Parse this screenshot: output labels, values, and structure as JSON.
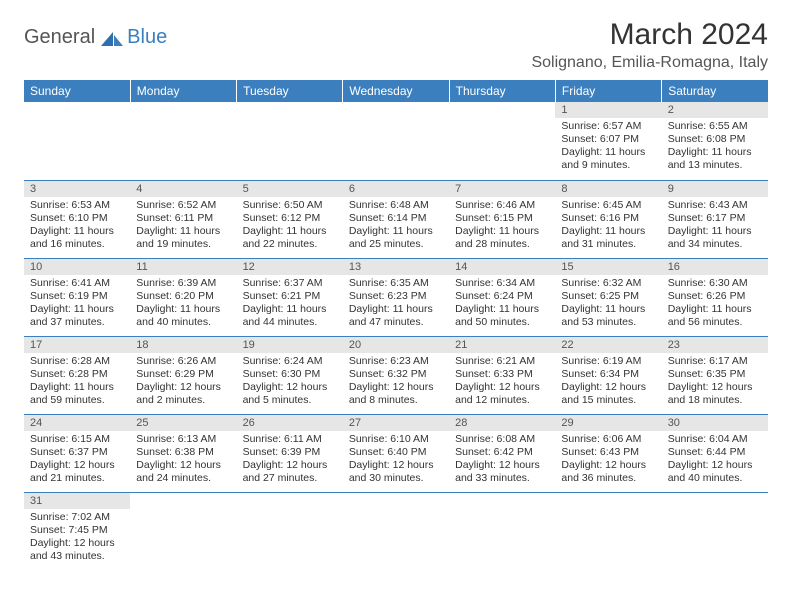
{
  "logo": {
    "general": "General",
    "blue": "Blue"
  },
  "title": "March 2024",
  "location": "Solignano, Emilia-Romagna, Italy",
  "colors": {
    "header_bg": "#3b7fbf",
    "header_text": "#ffffff",
    "daynum_bg": "#e6e6e6",
    "row_border": "#3b7fbf",
    "body_bg": "#ffffff",
    "text": "#333333"
  },
  "weekdays": [
    "Sunday",
    "Monday",
    "Tuesday",
    "Wednesday",
    "Thursday",
    "Friday",
    "Saturday"
  ],
  "weeks": [
    [
      null,
      null,
      null,
      null,
      null,
      {
        "n": "1",
        "sunrise": "Sunrise: 6:57 AM",
        "sunset": "Sunset: 6:07 PM",
        "daylight": "Daylight: 11 hours and 9 minutes."
      },
      {
        "n": "2",
        "sunrise": "Sunrise: 6:55 AM",
        "sunset": "Sunset: 6:08 PM",
        "daylight": "Daylight: 11 hours and 13 minutes."
      }
    ],
    [
      {
        "n": "3",
        "sunrise": "Sunrise: 6:53 AM",
        "sunset": "Sunset: 6:10 PM",
        "daylight": "Daylight: 11 hours and 16 minutes."
      },
      {
        "n": "4",
        "sunrise": "Sunrise: 6:52 AM",
        "sunset": "Sunset: 6:11 PM",
        "daylight": "Daylight: 11 hours and 19 minutes."
      },
      {
        "n": "5",
        "sunrise": "Sunrise: 6:50 AM",
        "sunset": "Sunset: 6:12 PM",
        "daylight": "Daylight: 11 hours and 22 minutes."
      },
      {
        "n": "6",
        "sunrise": "Sunrise: 6:48 AM",
        "sunset": "Sunset: 6:14 PM",
        "daylight": "Daylight: 11 hours and 25 minutes."
      },
      {
        "n": "7",
        "sunrise": "Sunrise: 6:46 AM",
        "sunset": "Sunset: 6:15 PM",
        "daylight": "Daylight: 11 hours and 28 minutes."
      },
      {
        "n": "8",
        "sunrise": "Sunrise: 6:45 AM",
        "sunset": "Sunset: 6:16 PM",
        "daylight": "Daylight: 11 hours and 31 minutes."
      },
      {
        "n": "9",
        "sunrise": "Sunrise: 6:43 AM",
        "sunset": "Sunset: 6:17 PM",
        "daylight": "Daylight: 11 hours and 34 minutes."
      }
    ],
    [
      {
        "n": "10",
        "sunrise": "Sunrise: 6:41 AM",
        "sunset": "Sunset: 6:19 PM",
        "daylight": "Daylight: 11 hours and 37 minutes."
      },
      {
        "n": "11",
        "sunrise": "Sunrise: 6:39 AM",
        "sunset": "Sunset: 6:20 PM",
        "daylight": "Daylight: 11 hours and 40 minutes."
      },
      {
        "n": "12",
        "sunrise": "Sunrise: 6:37 AM",
        "sunset": "Sunset: 6:21 PM",
        "daylight": "Daylight: 11 hours and 44 minutes."
      },
      {
        "n": "13",
        "sunrise": "Sunrise: 6:35 AM",
        "sunset": "Sunset: 6:23 PM",
        "daylight": "Daylight: 11 hours and 47 minutes."
      },
      {
        "n": "14",
        "sunrise": "Sunrise: 6:34 AM",
        "sunset": "Sunset: 6:24 PM",
        "daylight": "Daylight: 11 hours and 50 minutes."
      },
      {
        "n": "15",
        "sunrise": "Sunrise: 6:32 AM",
        "sunset": "Sunset: 6:25 PM",
        "daylight": "Daylight: 11 hours and 53 minutes."
      },
      {
        "n": "16",
        "sunrise": "Sunrise: 6:30 AM",
        "sunset": "Sunset: 6:26 PM",
        "daylight": "Daylight: 11 hours and 56 minutes."
      }
    ],
    [
      {
        "n": "17",
        "sunrise": "Sunrise: 6:28 AM",
        "sunset": "Sunset: 6:28 PM",
        "daylight": "Daylight: 11 hours and 59 minutes."
      },
      {
        "n": "18",
        "sunrise": "Sunrise: 6:26 AM",
        "sunset": "Sunset: 6:29 PM",
        "daylight": "Daylight: 12 hours and 2 minutes."
      },
      {
        "n": "19",
        "sunrise": "Sunrise: 6:24 AM",
        "sunset": "Sunset: 6:30 PM",
        "daylight": "Daylight: 12 hours and 5 minutes."
      },
      {
        "n": "20",
        "sunrise": "Sunrise: 6:23 AM",
        "sunset": "Sunset: 6:32 PM",
        "daylight": "Daylight: 12 hours and 8 minutes."
      },
      {
        "n": "21",
        "sunrise": "Sunrise: 6:21 AM",
        "sunset": "Sunset: 6:33 PM",
        "daylight": "Daylight: 12 hours and 12 minutes."
      },
      {
        "n": "22",
        "sunrise": "Sunrise: 6:19 AM",
        "sunset": "Sunset: 6:34 PM",
        "daylight": "Daylight: 12 hours and 15 minutes."
      },
      {
        "n": "23",
        "sunrise": "Sunrise: 6:17 AM",
        "sunset": "Sunset: 6:35 PM",
        "daylight": "Daylight: 12 hours and 18 minutes."
      }
    ],
    [
      {
        "n": "24",
        "sunrise": "Sunrise: 6:15 AM",
        "sunset": "Sunset: 6:37 PM",
        "daylight": "Daylight: 12 hours and 21 minutes."
      },
      {
        "n": "25",
        "sunrise": "Sunrise: 6:13 AM",
        "sunset": "Sunset: 6:38 PM",
        "daylight": "Daylight: 12 hours and 24 minutes."
      },
      {
        "n": "26",
        "sunrise": "Sunrise: 6:11 AM",
        "sunset": "Sunset: 6:39 PM",
        "daylight": "Daylight: 12 hours and 27 minutes."
      },
      {
        "n": "27",
        "sunrise": "Sunrise: 6:10 AM",
        "sunset": "Sunset: 6:40 PM",
        "daylight": "Daylight: 12 hours and 30 minutes."
      },
      {
        "n": "28",
        "sunrise": "Sunrise: 6:08 AM",
        "sunset": "Sunset: 6:42 PM",
        "daylight": "Daylight: 12 hours and 33 minutes."
      },
      {
        "n": "29",
        "sunrise": "Sunrise: 6:06 AM",
        "sunset": "Sunset: 6:43 PM",
        "daylight": "Daylight: 12 hours and 36 minutes."
      },
      {
        "n": "30",
        "sunrise": "Sunrise: 6:04 AM",
        "sunset": "Sunset: 6:44 PM",
        "daylight": "Daylight: 12 hours and 40 minutes."
      }
    ],
    [
      {
        "n": "31",
        "sunrise": "Sunrise: 7:02 AM",
        "sunset": "Sunset: 7:45 PM",
        "daylight": "Daylight: 12 hours and 43 minutes."
      },
      null,
      null,
      null,
      null,
      null,
      null
    ]
  ]
}
